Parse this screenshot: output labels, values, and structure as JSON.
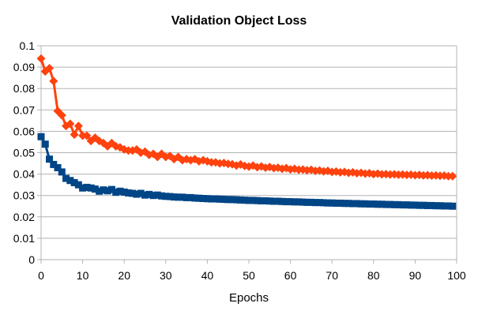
{
  "chart_data": {
    "type": "line",
    "title": "Validation Object Loss",
    "xlabel": "Epochs",
    "ylabel": "",
    "xlim": [
      0,
      100
    ],
    "ylim": [
      0,
      0.1
    ],
    "x_ticks": [
      "0",
      "10",
      "20",
      "30",
      "40",
      "50",
      "60",
      "70",
      "80",
      "90",
      "100"
    ],
    "y_ticks": [
      "0",
      "0.01",
      "0.02",
      "0.03",
      "0.04",
      "0.05",
      "0.06",
      "0.07",
      "0.08",
      "0.09",
      "0.1"
    ],
    "grid": "horizontal",
    "legend": "none",
    "colors": [
      "#ff420e",
      "#004586"
    ],
    "markers": [
      "diamond",
      "square"
    ],
    "x": [
      0,
      1,
      2,
      3,
      4,
      5,
      6,
      7,
      8,
      9,
      10,
      11,
      12,
      13,
      14,
      15,
      16,
      17,
      18,
      19,
      20,
      21,
      22,
      23,
      24,
      25,
      26,
      27,
      28,
      29,
      30,
      31,
      32,
      33,
      34,
      35,
      36,
      37,
      38,
      39,
      40,
      41,
      42,
      43,
      44,
      45,
      46,
      47,
      48,
      49,
      50,
      51,
      52,
      53,
      54,
      55,
      56,
      57,
      58,
      59,
      60,
      61,
      62,
      63,
      64,
      65,
      66,
      67,
      68,
      69,
      70,
      71,
      72,
      73,
      74,
      75,
      76,
      77,
      78,
      79,
      80,
      81,
      82,
      83,
      84,
      85,
      86,
      87,
      88,
      89,
      90,
      91,
      92,
      93,
      94,
      95,
      96,
      97,
      98,
      99
    ],
    "series": [
      {
        "values": [
          0.094,
          0.088,
          0.0895,
          0.0835,
          0.0695,
          0.0675,
          0.0625,
          0.0635,
          0.0585,
          0.0625,
          0.058,
          0.058,
          0.0555,
          0.057,
          0.0555,
          0.0545,
          0.053,
          0.0545,
          0.053,
          0.0525,
          0.0515,
          0.051,
          0.051,
          0.0515,
          0.05,
          0.0505,
          0.049,
          0.0495,
          0.048,
          0.0495,
          0.048,
          0.0485,
          0.047,
          0.048,
          0.0465,
          0.047,
          0.0465,
          0.047,
          0.046,
          0.0465,
          0.046,
          0.0455,
          0.0455,
          0.045,
          0.0452,
          0.0448,
          0.0446,
          0.044,
          0.0445,
          0.0438,
          0.0435,
          0.044,
          0.0432,
          0.0436,
          0.043,
          0.0433,
          0.0428,
          0.043,
          0.0425,
          0.0428,
          0.0422,
          0.0425,
          0.042,
          0.0421,
          0.0418,
          0.042,
          0.0415,
          0.0417,
          0.0413,
          0.0415,
          0.041,
          0.0412,
          0.0408,
          0.041,
          0.0406,
          0.0408,
          0.0404,
          0.0406,
          0.0402,
          0.0404,
          0.04,
          0.0402,
          0.0399,
          0.04,
          0.0398,
          0.0399,
          0.0397,
          0.0398,
          0.0396,
          0.0397,
          0.0395,
          0.0396,
          0.0394,
          0.0395,
          0.0393,
          0.0394,
          0.0392,
          0.0393,
          0.039,
          0.039
        ]
      },
      {
        "values": [
          0.0575,
          0.054,
          0.047,
          0.0445,
          0.043,
          0.041,
          0.038,
          0.037,
          0.036,
          0.035,
          0.0335,
          0.0338,
          0.0335,
          0.033,
          0.032,
          0.0326,
          0.0322,
          0.0328,
          0.0315,
          0.032,
          0.0316,
          0.0312,
          0.031,
          0.0306,
          0.031,
          0.0302,
          0.0305,
          0.03,
          0.0302,
          0.0298,
          0.0296,
          0.0295,
          0.0293,
          0.0292,
          0.0292,
          0.029,
          0.029,
          0.0288,
          0.0287,
          0.0286,
          0.0285,
          0.0284,
          0.0284,
          0.0283,
          0.0282,
          0.0281,
          0.0281,
          0.028,
          0.0279,
          0.0278,
          0.0277,
          0.0277,
          0.0276,
          0.0275,
          0.0275,
          0.0274,
          0.0273,
          0.0273,
          0.0272,
          0.0271,
          0.0271,
          0.027,
          0.027,
          0.0269,
          0.0268,
          0.0268,
          0.0267,
          0.0267,
          0.0266,
          0.0265,
          0.0265,
          0.0264,
          0.0264,
          0.0263,
          0.0263,
          0.0262,
          0.0262,
          0.0261,
          0.0261,
          0.026,
          0.026,
          0.0259,
          0.0259,
          0.0258,
          0.0258,
          0.0257,
          0.0257,
          0.0256,
          0.0256,
          0.0255,
          0.0255,
          0.0254,
          0.0254,
          0.0253,
          0.0253,
          0.0252,
          0.0252,
          0.0251,
          0.0251,
          0.025
        ]
      }
    ]
  }
}
